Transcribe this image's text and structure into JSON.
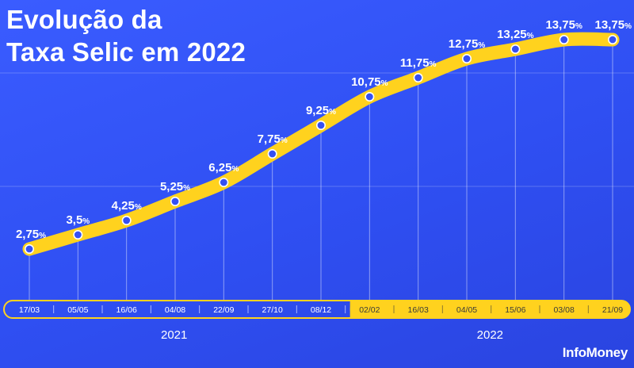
{
  "title_line1": "Evolução da",
  "title_line2": "Taxa Selic em 2022",
  "brand": "InfoMoney",
  "colors": {
    "background": "#3050f5",
    "accent": "#ffd21e",
    "text": "#ffffff"
  },
  "chart_data": {
    "type": "line",
    "categories": [
      "17/03",
      "05/05",
      "16/06",
      "04/08",
      "22/09",
      "27/10",
      "08/12",
      "02/02",
      "16/03",
      "04/05",
      "15/06",
      "03/08",
      "21/09"
    ],
    "values": [
      2.75,
      3.5,
      4.25,
      5.25,
      6.25,
      7.75,
      9.25,
      10.75,
      11.75,
      12.75,
      13.25,
      13.75,
      13.75
    ],
    "value_labels": [
      "2,75",
      "3,5",
      "4,25",
      "5,25",
      "6,25",
      "7,75",
      "9,25",
      "10,75",
      "11,75",
      "12,75",
      "13,25",
      "13,75",
      "13,75"
    ],
    "unit": "%",
    "year_groups": [
      {
        "label": "2021",
        "categories": [
          "17/03",
          "05/05",
          "16/06",
          "04/08",
          "22/09",
          "27/10",
          "08/12"
        ]
      },
      {
        "label": "2022",
        "categories": [
          "02/02",
          "16/03",
          "04/05",
          "15/06",
          "03/08",
          "21/09"
        ]
      }
    ],
    "highlighted_categories": [
      "02/02",
      "16/03",
      "04/05",
      "15/06",
      "03/08",
      "21/09"
    ],
    "grid": true,
    "xlabel": "",
    "ylabel": ""
  }
}
